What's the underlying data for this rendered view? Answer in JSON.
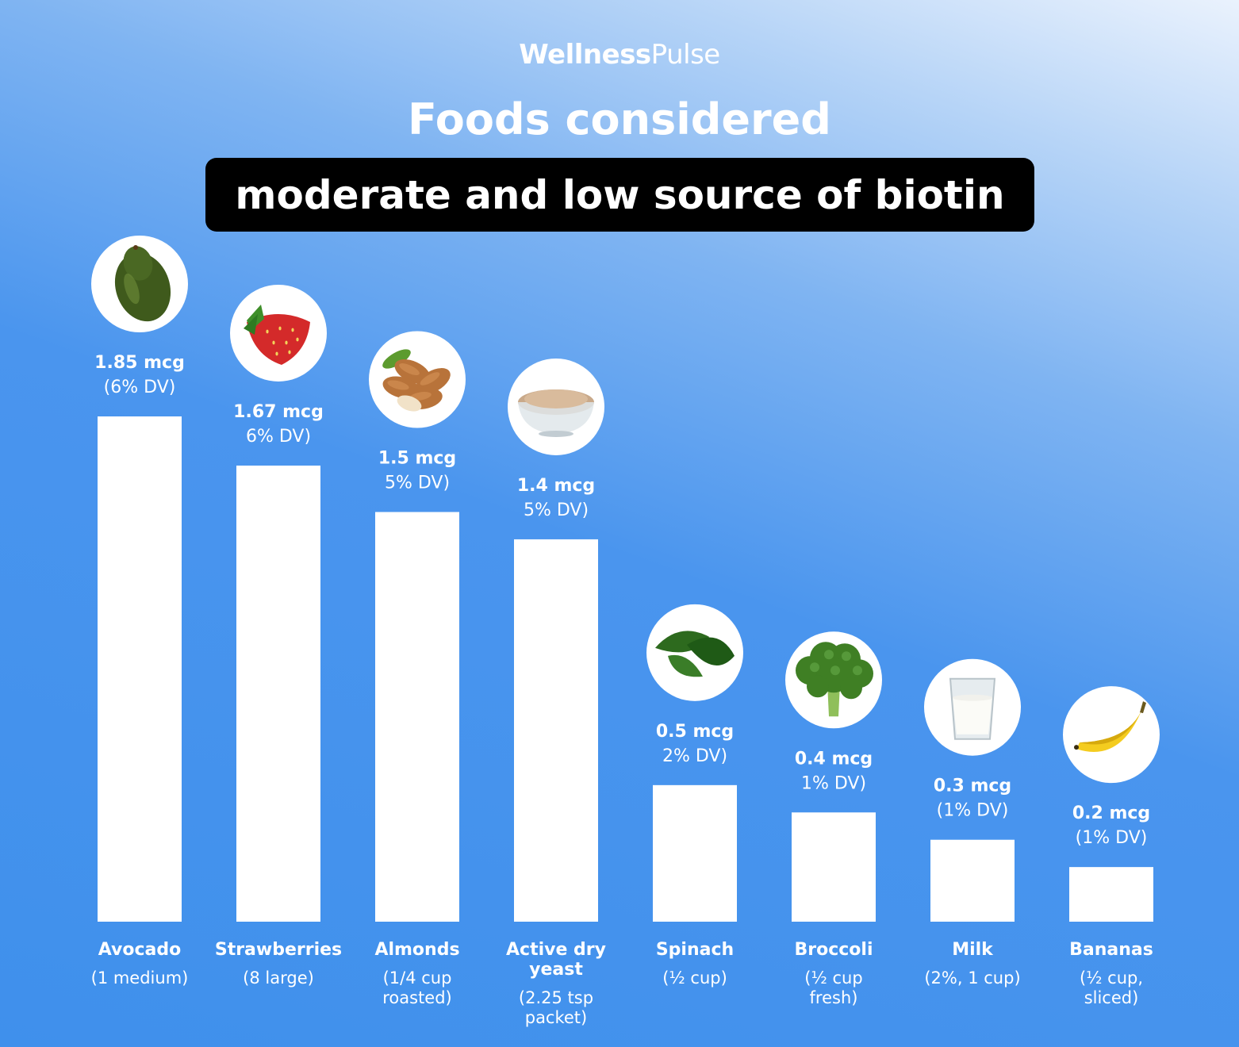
{
  "brand": {
    "part1": "Wellness",
    "part2": "Pulse"
  },
  "header": {
    "title": "Foods considered",
    "subtitle": "moderate and low source of biotin"
  },
  "colors": {
    "bar": "#ffffff",
    "background": "#3f90ec",
    "subtitle_bg": "#000000"
  },
  "chart_data": {
    "type": "bar",
    "title": "Foods considered moderate and low source of biotin",
    "categories": [
      "Avocado",
      "Strawberries",
      "Almonds",
      "Active dry yeast",
      "Spinach",
      "Broccoli",
      "Milk",
      "Bananas"
    ],
    "values": [
      1.85,
      1.67,
      1.5,
      1.4,
      0.5,
      0.4,
      0.3,
      0.2
    ],
    "unit": "mcg",
    "grid": false,
    "legend": "none",
    "bars": [
      {
        "name": "Avocado",
        "value": 1.85,
        "value_label": "1.85 mcg",
        "dv_label": "(6% DV)",
        "serving_lines": [
          "(1 medium)"
        ],
        "icon": "avocado-icon"
      },
      {
        "name": "Strawberries",
        "value": 1.67,
        "value_label": "1.67 mcg",
        "dv_label": "6% DV)",
        "serving_lines": [
          "(8 large)"
        ],
        "icon": "strawberry-icon"
      },
      {
        "name": "Almonds",
        "value": 1.5,
        "value_label": "1.5 mcg",
        "dv_label": "5% DV)",
        "serving_lines": [
          "(1/4 cup",
          "roasted)"
        ],
        "icon": "almonds-icon"
      },
      {
        "name": "Active dry yeast",
        "name_lines": [
          "Active dry",
          "yeast"
        ],
        "value": 1.4,
        "value_label": "1.4 mcg",
        "dv_label": "5% DV)",
        "serving_lines": [
          "(2.25 tsp",
          "packet)"
        ],
        "icon": "yeast-bowl-icon"
      },
      {
        "name": "Spinach",
        "value": 0.5,
        "value_label": "0.5 mcg",
        "dv_label": "2% DV)",
        "serving_lines": [
          "(½ cup)"
        ],
        "icon": "spinach-icon"
      },
      {
        "name": "Broccoli",
        "value": 0.4,
        "value_label": "0.4 mcg",
        "dv_label": "1% DV)",
        "serving_lines": [
          "(½ cup",
          "fresh)"
        ],
        "icon": "broccoli-icon"
      },
      {
        "name": "Milk",
        "value": 0.3,
        "value_label": "0.3 mcg",
        "dv_label": "(1% DV)",
        "serving_lines": [
          "(2%, 1 cup)"
        ],
        "icon": "milk-glass-icon"
      },
      {
        "name": "Bananas",
        "value": 0.2,
        "value_label": "0.2 mcg",
        "dv_label": "(1% DV)",
        "serving_lines": [
          "(½ cup,",
          "sliced)"
        ],
        "icon": "banana-icon"
      }
    ]
  }
}
